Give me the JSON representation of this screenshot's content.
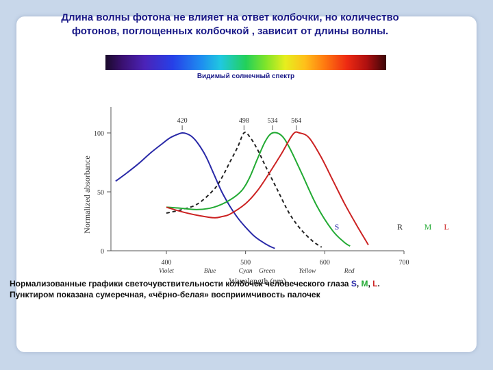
{
  "title": {
    "line1": "Длина волны фотона не влияет на ответ колбочки, но количество",
    "line2": "фотонов, поглощенных колбочкой , зависит от длины волны."
  },
  "spectrum_label": "Видимый солнечный спектр",
  "caption": {
    "line1_prefix": "Нормализованные графики светочувствительности колбочек человеческого глаза ",
    "s": "S",
    "m": "M",
    "l": "L",
    "sep": ", ",
    "end": ".",
    "line2": "Пунктиром показана сумеречная, «чёрно-белая» восприимчивость палочек"
  },
  "colors": {
    "S": "#2a2aa8",
    "R": "#222222",
    "M": "#22aa33",
    "L": "#cc2222",
    "title": "#1a1a88",
    "axis": "#555555"
  },
  "chart_data": {
    "type": "line",
    "xlabel": "Wavelength (nm)",
    "ylabel": "Normalized absorbance",
    "xlim": [
      330,
      700
    ],
    "ylim": [
      0,
      100
    ],
    "xticks": [
      400,
      500,
      600,
      700
    ],
    "yticks": [
      0,
      50,
      100
    ],
    "color_names": [
      {
        "x": 400,
        "label": "Violet"
      },
      {
        "x": 455,
        "label": "Blue"
      },
      {
        "x": 500,
        "label": "Cyan"
      },
      {
        "x": 527,
        "label": "Green"
      },
      {
        "x": 578,
        "label": "Yellow"
      },
      {
        "x": 631,
        "label": "Red"
      }
    ],
    "peaks": [
      {
        "x": 420,
        "label": "420"
      },
      {
        "x": 498,
        "label": "498"
      },
      {
        "x": 534,
        "label": "534"
      },
      {
        "x": 564,
        "label": "564"
      }
    ],
    "series": [
      {
        "name": "S",
        "key": "S",
        "dashed": false,
        "label_x": 492,
        "label_y": 18,
        "x": [
          336,
          350,
          365,
          380,
          395,
          405,
          415,
          420,
          425,
          432,
          440,
          450,
          460,
          470,
          480,
          490,
          500,
          510,
          520,
          530,
          537
        ],
        "y": [
          59,
          66,
          74,
          83,
          91,
          96,
          99,
          100,
          99.5,
          97,
          91,
          80,
          65,
          50,
          38,
          28,
          20,
          13,
          8,
          4,
          2
        ]
      },
      {
        "name": "R",
        "key": "R",
        "dashed": true,
        "label_x": 584,
        "label_y": 18,
        "x": [
          400,
          420,
          440,
          460,
          470,
          480,
          490,
          498,
          505,
          515,
          525,
          540,
          555,
          570,
          585,
          596
        ],
        "y": [
          32,
          35,
          40,
          52,
          62,
          75,
          88,
          100,
          97,
          86,
          72,
          52,
          32,
          18,
          8,
          3
        ]
      },
      {
        "name": "M",
        "key": "M",
        "dashed": false,
        "label_x": 625,
        "label_y": 18,
        "x": [
          400,
          420,
          440,
          460,
          480,
          495,
          505,
          515,
          525,
          534,
          545,
          555,
          570,
          590,
          610,
          625,
          632
        ],
        "y": [
          37,
          36,
          35,
          37,
          43,
          51,
          62,
          78,
          93,
          100,
          98,
          88,
          67,
          38,
          17,
          7,
          4
        ]
      },
      {
        "name": "L",
        "key": "L",
        "dashed": false,
        "label_x": 652,
        "label_y": 18,
        "x": [
          400,
          420,
          440,
          460,
          470,
          480,
          500,
          515,
          530,
          545,
          560,
          568,
          580,
          595,
          610,
          625,
          640,
          655
        ],
        "y": [
          37,
          33,
          30,
          28,
          29,
          31,
          40,
          51,
          66,
          82,
          99,
          100,
          96,
          80,
          60,
          40,
          22,
          5
        ]
      }
    ]
  }
}
